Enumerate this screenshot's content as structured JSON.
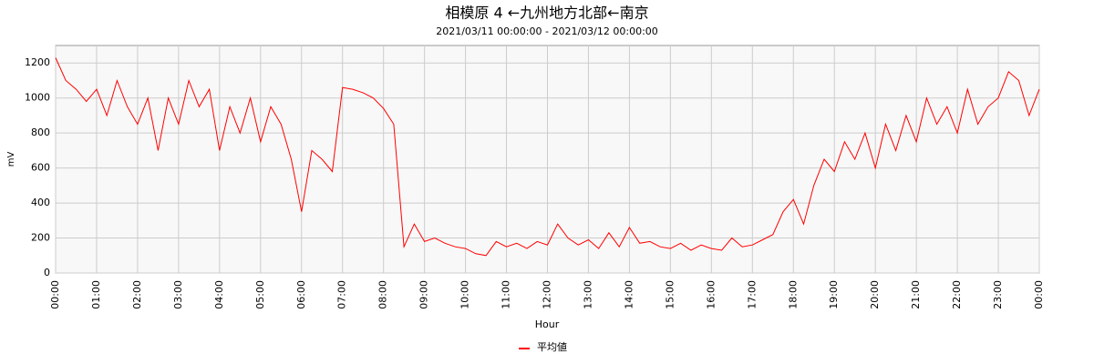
{
  "chart_data": {
    "type": "line",
    "title": "相模原 4 ←九州地方北部←南京",
    "subtitle": "2021/03/11 00:00:00 - 2021/03/12 00:00:00",
    "x_label": "Hour",
    "y_label": "mV",
    "x": [
      0,
      0.25,
      0.5,
      0.75,
      1,
      1.25,
      1.5,
      1.75,
      2,
      2.25,
      2.5,
      2.75,
      3,
      3.25,
      3.5,
      3.75,
      4,
      4.25,
      4.5,
      4.75,
      5,
      5.25,
      5.5,
      5.75,
      6,
      6.25,
      6.5,
      6.75,
      7,
      7.25,
      7.5,
      7.75,
      8,
      8.25,
      8.5,
      8.75,
      9,
      9.25,
      9.5,
      9.75,
      10,
      10.25,
      10.5,
      10.75,
      11,
      11.25,
      11.5,
      11.75,
      12,
      12.25,
      12.5,
      12.75,
      13,
      13.25,
      13.5,
      13.75,
      14,
      14.25,
      14.5,
      14.75,
      15,
      15.25,
      15.5,
      15.75,
      16,
      16.25,
      16.5,
      16.75,
      17,
      17.25,
      17.5,
      17.75,
      18,
      18.25,
      18.5,
      18.75,
      19,
      19.25,
      19.5,
      19.75,
      20,
      20.25,
      20.5,
      20.75,
      21,
      21.25,
      21.5,
      21.75,
      22,
      22.25,
      22.5,
      22.75,
      23,
      23.25,
      23.5,
      23.75,
      24
    ],
    "series": [
      {
        "name": "平均値",
        "color": "#ff0000",
        "values": [
          1230,
          1100,
          1050,
          980,
          1050,
          900,
          1100,
          950,
          850,
          1000,
          700,
          1000,
          850,
          1100,
          950,
          1050,
          700,
          950,
          800,
          1000,
          750,
          950,
          850,
          650,
          350,
          700,
          650,
          580,
          1060,
          1050,
          1030,
          1000,
          940,
          850,
          150,
          280,
          180,
          200,
          170,
          150,
          140,
          110,
          100,
          180,
          150,
          170,
          140,
          180,
          160,
          280,
          200,
          160,
          190,
          140,
          230,
          150,
          260,
          170,
          180,
          150,
          140,
          170,
          130,
          160,
          140,
          130,
          200,
          150,
          160,
          190,
          220,
          350,
          420,
          280,
          500,
          650,
          580,
          750,
          650,
          800,
          600,
          850,
          700,
          900,
          750,
          1000,
          850,
          950,
          800,
          1050,
          850,
          950,
          1000,
          1150,
          1100,
          900,
          1050
        ]
      }
    ],
    "xlim": [
      0,
      24
    ],
    "xticks": [
      {
        "value": 0,
        "label": "00:00"
      },
      {
        "value": 1,
        "label": "01:00"
      },
      {
        "value": 2,
        "label": "02:00"
      },
      {
        "value": 3,
        "label": "03:00"
      },
      {
        "value": 4,
        "label": "04:00"
      },
      {
        "value": 5,
        "label": "05:00"
      },
      {
        "value": 6,
        "label": "06:00"
      },
      {
        "value": 7,
        "label": "07:00"
      },
      {
        "value": 8,
        "label": "08:00"
      },
      {
        "value": 9,
        "label": "09:00"
      },
      {
        "value": 10,
        "label": "10:00"
      },
      {
        "value": 11,
        "label": "11:00"
      },
      {
        "value": 12,
        "label": "12:00"
      },
      {
        "value": 13,
        "label": "13:00"
      },
      {
        "value": 14,
        "label": "14:00"
      },
      {
        "value": 15,
        "label": "15:00"
      },
      {
        "value": 16,
        "label": "16:00"
      },
      {
        "value": 17,
        "label": "17:00"
      },
      {
        "value": 18,
        "label": "18:00"
      },
      {
        "value": 19,
        "label": "19:00"
      },
      {
        "value": 20,
        "label": "20:00"
      },
      {
        "value": 21,
        "label": "21:00"
      },
      {
        "value": 22,
        "label": "22:00"
      },
      {
        "value": 23,
        "label": "23:00"
      },
      {
        "value": 24,
        "label": "00:00"
      }
    ],
    "ylim": [
      0,
      1300
    ],
    "yticks": [
      0,
      200,
      400,
      600,
      800,
      1000,
      1200
    ],
    "grid": true,
    "legend": "bottom"
  }
}
